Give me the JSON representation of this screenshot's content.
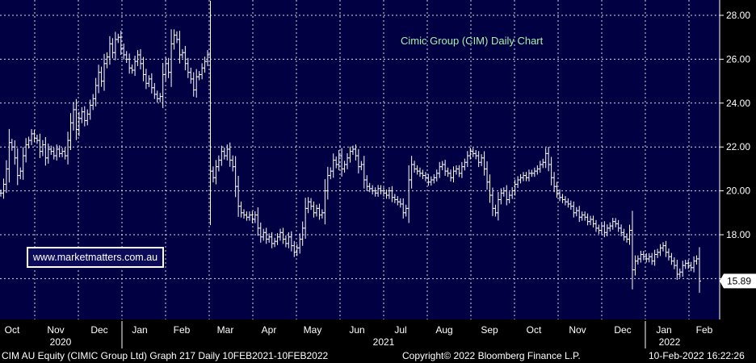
{
  "chart_data": {
    "type": "bar",
    "style": "OHLC",
    "title": "Cimic Group (CIM) Daily Chart",
    "ylim": [
      14.2,
      28.6
    ],
    "yticks": [
      "28.00",
      "26.00",
      "24.00",
      "22.00",
      "20.00",
      "18.00"
    ],
    "last_price": "15.89",
    "months": [
      "Oct",
      "Nov",
      "Dec",
      "Jan",
      "Feb",
      "Mar",
      "Apr",
      "May",
      "Jun",
      "Jul",
      "Aug",
      "Sep",
      "Oct",
      "Nov",
      "Dec",
      "Jan",
      "Feb"
    ],
    "years": [
      "2020",
      "2021",
      "2022"
    ],
    "grid": true,
    "colors": {
      "background": "#000042",
      "bars": "#ffffff",
      "grid": "#ffffff",
      "title": "#a8f0a8"
    },
    "series": [
      {
        "values": [
          19.9,
          20.3,
          21.0,
          22.2,
          22.0,
          21.5,
          20.7,
          20.9,
          21.6,
          22.1,
          22.3,
          22.6,
          22.4,
          22.3,
          21.8,
          22.1,
          21.5,
          21.9,
          21.8,
          21.6,
          21.9,
          21.7,
          21.8,
          21.6,
          22.3,
          23.1,
          23.7,
          22.8,
          23.3,
          23.6,
          23.2,
          23.5,
          23.9,
          24.2,
          24.8,
          25.4,
          25.0,
          25.8,
          26.1,
          26.7,
          26.3,
          26.9,
          27.0,
          26.5,
          26.2,
          26.0,
          25.6,
          25.5,
          25.9,
          26.2,
          25.8,
          25.3,
          24.9,
          25.1,
          24.7,
          24.4,
          24.2,
          24.3,
          25.3,
          25.8,
          25.4,
          26.7,
          27.1,
          26.9,
          26.2,
          26.3,
          25.8,
          25.4,
          25.1,
          24.6,
          25.2,
          25.3,
          25.6,
          25.9,
          26.2,
          20.9,
          20.6,
          21.1,
          21.4,
          21.8,
          21.6,
          21.9,
          21.4,
          21.1,
          20.2,
          19.3,
          19.0,
          18.9,
          18.8,
          18.9,
          18.7,
          18.9,
          18.3,
          17.9,
          18.1,
          17.8,
          17.9,
          17.6,
          17.7,
          17.9,
          18.1,
          17.8,
          17.6,
          17.9,
          17.5,
          17.2,
          17.4,
          17.8,
          18.3,
          19.2,
          19.5,
          19.3,
          19.0,
          19.2,
          18.9,
          19.0,
          20.0,
          20.7,
          20.9,
          21.4,
          21.2,
          21.6,
          21.0,
          21.2,
          21.5,
          21.8,
          21.9,
          21.6,
          21.1,
          21.2,
          20.5,
          20.2,
          20.1,
          20.0,
          19.9,
          20.1,
          20.0,
          19.9,
          19.8,
          20.0,
          19.7,
          19.6,
          19.5,
          19.4,
          19.0,
          19.2,
          20.5,
          21.2,
          21.0,
          20.9,
          20.8,
          20.7,
          20.6,
          20.4,
          20.5,
          20.6,
          20.8,
          21.1,
          21.2,
          20.9,
          20.8,
          20.6,
          20.9,
          21.0,
          20.8,
          21.1,
          21.3,
          21.6,
          21.8,
          21.7,
          21.6,
          21.3,
          21.5,
          21.0,
          20.4,
          19.8,
          19.2,
          19.0,
          19.6,
          19.9,
          20.0,
          19.6,
          19.8,
          20.0,
          20.3,
          20.5,
          20.6,
          20.7,
          20.6,
          20.8,
          20.8,
          20.9,
          21.0,
          21.2,
          21.3,
          21.7,
          21.2,
          20.6,
          20.2,
          19.9,
          19.7,
          19.6,
          19.5,
          19.4,
          19.3,
          19.0,
          19.1,
          18.8,
          18.9,
          18.8,
          18.6,
          18.7,
          18.5,
          18.3,
          18.2,
          18.4,
          18.1,
          18.3,
          18.4,
          18.6,
          18.5,
          18.3,
          18.1,
          17.9,
          17.8,
          18.2,
          16.4,
          16.8,
          16.9,
          17.1,
          17.0,
          16.9,
          17.0,
          16.8,
          17.1,
          17.2,
          17.4,
          17.5,
          17.2,
          17.0,
          16.8,
          16.6,
          16.2,
          16.3,
          16.6,
          16.7,
          16.6,
          16.5,
          16.8,
          16.9,
          15.89
        ]
      }
    ]
  },
  "watermark": {
    "text": "www.marketmatters.com.au"
  },
  "footer": {
    "security": "CIM AU Equity (CIMIC Group Ltd) Graph 217  Daily 10FEB2021-10FEB2022",
    "copyright": "Copyright© 2022 Bloomberg Finance L.P.",
    "timestamp": "10-Feb-2022 16:22:26"
  }
}
